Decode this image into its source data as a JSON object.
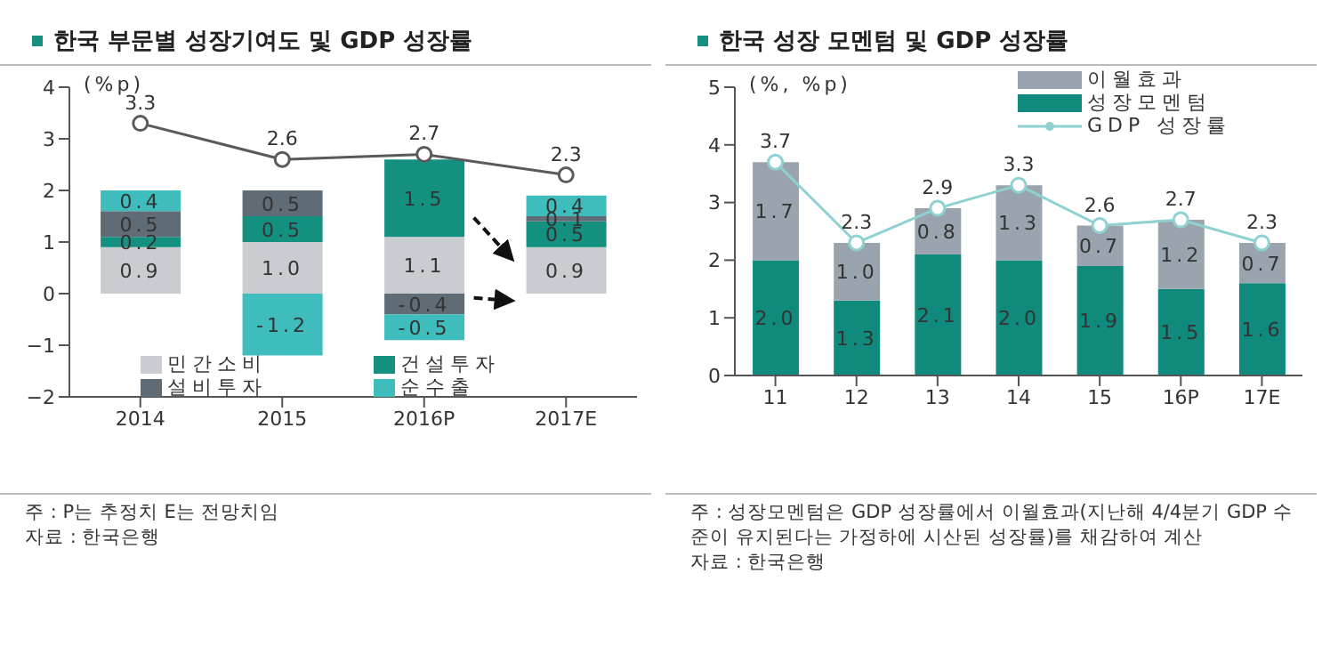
{
  "chart_data": [
    {
      "type": "bar",
      "title": "한국 부문별 성장기여도 및 GDP 성장률",
      "ylabel": "(%p)",
      "categories": [
        "2014",
        "2015",
        "2016P",
        "2017E"
      ],
      "stacked": true,
      "ylim": [
        -2,
        4
      ],
      "yticks": [
        -2,
        -1,
        0,
        1,
        2,
        3,
        4
      ],
      "legend": "bottom",
      "series": [
        {
          "name": "민간소비",
          "color": "#c9cdd1",
          "values": [
            0.9,
            1.0,
            1.1,
            0.9
          ],
          "value_labels": [
            "0.9",
            "1.0",
            "1.1",
            "0.9"
          ]
        },
        {
          "name": "건설투자",
          "color": "#13907f",
          "values": [
            0.2,
            0.5,
            1.5,
            0.5
          ],
          "value_labels": [
            "0.2",
            "0.5",
            "1.5",
            "0.5"
          ]
        },
        {
          "name": "설비투자",
          "color": "#5f6b75",
          "values": [
            0.5,
            0.5,
            -0.4,
            0.1
          ],
          "value_labels": [
            "0.5",
            "0.5",
            "-0.4",
            "0.1"
          ]
        },
        {
          "name": "순수출",
          "color": "#3fbdbd",
          "values": [
            0.4,
            -1.2,
            -0.5,
            0.4
          ],
          "value_labels": [
            "0.4",
            "-1.2",
            "-0.5",
            "0.4"
          ]
        },
        {
          "type": "line",
          "color": "#5a5a5a",
          "marker": "circle",
          "values": [
            3.3,
            2.6,
            2.7,
            2.3
          ],
          "value_labels": [
            "3.3",
            "2.6",
            "2.7",
            "2.3"
          ]
        }
      ],
      "annotations": [
        "주 : P는 추정치 E는 전망치임",
        "자료 : 한국은행"
      ]
    },
    {
      "type": "bar",
      "title": "한국 성장 모멘텀 및 GDP 성장률",
      "ylabel": "(%, %p)",
      "categories": [
        "11",
        "12",
        "13",
        "14",
        "15",
        "16P",
        "17E"
      ],
      "stacked": true,
      "ylim": [
        0,
        5
      ],
      "yticks": [
        0,
        1,
        2,
        3,
        4,
        5
      ],
      "legend": "top right",
      "series": [
        {
          "name": "성장모멘텀",
          "color": "#0f8a7c",
          "values": [
            2.0,
            1.3,
            2.1,
            2.0,
            1.9,
            1.5,
            1.6
          ],
          "value_labels": [
            "2.0",
            "1.3",
            "2.1",
            "2.0",
            "1.9",
            "1.5",
            "1.6"
          ]
        },
        {
          "name": "이월효과",
          "color": "#9aa4ae",
          "values": [
            1.7,
            1.0,
            0.8,
            1.3,
            0.7,
            1.2,
            0.7
          ],
          "value_labels": [
            "1.7",
            "1.0",
            "0.8",
            "1.3",
            "0.7",
            "1.2",
            "0.7"
          ]
        },
        {
          "type": "line",
          "name": "GDP 성장률",
          "color": "#8fd0d0",
          "marker": "circle",
          "values": [
            3.7,
            2.3,
            2.9,
            3.3,
            2.6,
            2.7,
            2.3
          ],
          "value_labels": [
            "3.7",
            "2.3",
            "2.9",
            "3.3",
            "2.6",
            "2.7",
            "2.3"
          ]
        }
      ],
      "annotations": [
        "주 : 성장모멘텀은 GDP 성장률에서 이월효과(지난해 4/4분기 GDP 수준이 유지된다는 가정하에 시산된 성장률)를 채감하여 계산",
        "자료 : 한국은행"
      ]
    }
  ]
}
